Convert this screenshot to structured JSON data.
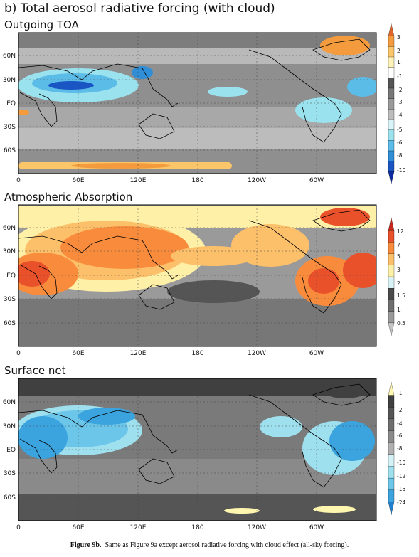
{
  "figure_title": "b) Total aerosol radiative forcing (with cloud)",
  "caption": {
    "label": "Figure 9b.",
    "text": "Same as Figure 9a except aerosol radiative forcing with cloud effect (all-sky forcing)."
  },
  "chart_data": [
    {
      "type": "heatmap",
      "title": "Outgoing TOA",
      "x_ticks": [
        "0",
        "60E",
        "120E",
        "180",
        "120W",
        "60W"
      ],
      "y_ticks": [
        "60N",
        "30N",
        "EQ",
        "30S",
        "60S"
      ],
      "colorbar": {
        "labels": [
          "3",
          "2",
          "1",
          "-1",
          "-2",
          "-3",
          "-4",
          "-5",
          "-6",
          "-8",
          "-10"
        ],
        "colors": [
          "#e0662a",
          "#f49c3d",
          "#fbc56a",
          "#fff2b8",
          "#ffffff",
          "#555555",
          "#777777",
          "#9a9a9a",
          "#bcbcbc",
          "#d8f4f8",
          "#9be2ef",
          "#5bbce8",
          "#2f8ed6",
          "#1a55c4",
          "#0a2aa0"
        ]
      }
    },
    {
      "type": "heatmap",
      "title": "Atmospheric Absorption",
      "x_ticks": [
        "0",
        "60E",
        "120E",
        "180",
        "120W",
        "60W"
      ],
      "y_ticks": [
        "60N",
        "30N",
        "EQ",
        "30S",
        "60S"
      ],
      "colorbar": {
        "labels": [
          "12",
          "7",
          "5",
          "3",
          "2",
          "1.5",
          "1",
          "0.5"
        ],
        "colors": [
          "#c8281b",
          "#e9512a",
          "#f98c3c",
          "#fdc06a",
          "#fff0a8",
          "#d8f2f6",
          "#4a4a4a",
          "#6e6e6e",
          "#9a9a9a",
          "#c4c4c4"
        ]
      }
    },
    {
      "type": "heatmap",
      "title": "Surface net",
      "x_ticks": [
        "0",
        "60E",
        "120E",
        "180",
        "120W",
        "60W"
      ],
      "y_ticks": [
        "60N",
        "30N",
        "EQ",
        "30S",
        "60S"
      ],
      "colorbar": {
        "labels": [
          "-1",
          "-2",
          "-4",
          "-6",
          "-8",
          "-10",
          "-12",
          "-15",
          "-24"
        ],
        "colors": [
          "#fff6b0",
          "#404040",
          "#555555",
          "#6e6e6e",
          "#8a8a8a",
          "#b0b0b0",
          "#d4f2f6",
          "#9fe0ef",
          "#6cc6ea",
          "#3ba3de",
          "#1f7fd0"
        ]
      }
    }
  ]
}
